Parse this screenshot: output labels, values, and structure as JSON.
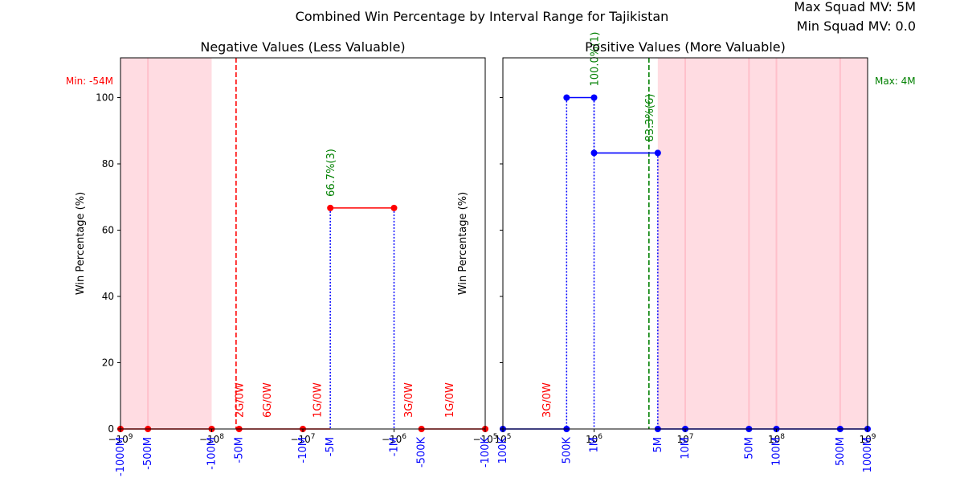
{
  "figure": {
    "suptitle": "Combined Win Percentage by Interval Range for Tajikistan",
    "max_squad_mv": "Max Squad MV: 5M",
    "min_squad_mv": "Min Squad MV: 0.0"
  },
  "colors": {
    "negative_line": "#ff0000",
    "positive_line": "#0000ff",
    "dotted_drop": "#0000ff",
    "shade": "#ffc0cb",
    "green_annot": "#008000",
    "red_annot": "#ff0000",
    "blue_tick": "#0000ff"
  },
  "chart_data": [
    {
      "type": "line",
      "title": "Negative Values (Less Valuable)",
      "xlabel": "",
      "ylabel": "Win Percentage (%)",
      "xscale": "symlog-negative",
      "xlim": [
        -1000000000,
        -100000
      ],
      "ylim": [
        0,
        112
      ],
      "grid": false,
      "yticks": [
        0,
        20,
        40,
        60,
        80,
        100
      ],
      "major_xticks": [
        {
          "value": -1000000000,
          "label": "−10^9"
        },
        {
          "value": -100000000,
          "label": "−10^8"
        },
        {
          "value": -10000000,
          "label": "−10^7"
        },
        {
          "value": -1000000,
          "label": "−10^6"
        },
        {
          "value": -100000,
          "label": "−10^5"
        }
      ],
      "interval_ticks": [
        {
          "value": -1000000000,
          "label": "-1000M"
        },
        {
          "value": -500000000,
          "label": "-500M"
        },
        {
          "value": -100000000,
          "label": "-100M"
        },
        {
          "value": -50000000,
          "label": "-50M"
        },
        {
          "value": -10000000,
          "label": "-10M"
        },
        {
          "value": -5000000,
          "label": "-5M"
        },
        {
          "value": -1000000,
          "label": "-1M"
        },
        {
          "value": -500000,
          "label": "-500K"
        },
        {
          "value": -100000,
          "label": "-100K"
        }
      ],
      "series": [
        {
          "x": [
            -1000000000,
            -500000000,
            -100000000,
            -50000000,
            -10000000,
            -5000000,
            -1000000,
            -500000,
            -100000
          ],
          "y": [
            0,
            0,
            0,
            0,
            0,
            66.7,
            66.7,
            0,
            0
          ]
        }
      ],
      "segments": [
        {
          "x0": -1000000000,
          "x1": -500000000,
          "y": 0
        },
        {
          "x0": -500000000,
          "x1": -100000000,
          "y": 0
        },
        {
          "x0": -50000000,
          "x1": -10000000,
          "y": 0
        },
        {
          "x0": -10000000,
          "x1": -5000000,
          "y": 0
        },
        {
          "x0": -5000000,
          "x1": -1000000,
          "y": 66.7
        },
        {
          "x0": -500000,
          "x1": -100000,
          "y": 0
        }
      ],
      "drop_lines": [
        -5000000,
        -1000000
      ],
      "shaded_range": [
        -1000000000,
        -100000000
      ],
      "vline": {
        "x": -54000000,
        "label": "Min: -54M"
      },
      "annotations": [
        {
          "x": -5000000,
          "y": 66.7,
          "text": "66.7%(3)",
          "color": "green"
        },
        {
          "x": -50000000,
          "y": 0,
          "text": "2G/0W",
          "color": "red"
        },
        {
          "x": -25000000,
          "y": 0,
          "text": "6G/0W",
          "color": "red"
        },
        {
          "x": -7000000,
          "y": 0,
          "text": "1G/0W",
          "color": "red"
        },
        {
          "x": -700000,
          "y": 0,
          "text": "3G/0W",
          "color": "red"
        },
        {
          "x": -250000,
          "y": 0,
          "text": "1G/0W",
          "color": "red"
        }
      ]
    },
    {
      "type": "line",
      "title": "Positive Values (More Valuable)",
      "xlabel": "",
      "ylabel": "Win Percentage (%)",
      "xscale": "log",
      "xlim": [
        100000,
        1000000000
      ],
      "ylim": [
        0,
        112
      ],
      "grid": false,
      "yticks": [
        0,
        20,
        40,
        60,
        80,
        100
      ],
      "major_xticks": [
        {
          "value": 100000,
          "label": "10^5"
        },
        {
          "value": 1000000,
          "label": "10^6"
        },
        {
          "value": 10000000,
          "label": "10^7"
        },
        {
          "value": 100000000,
          "label": "10^8"
        },
        {
          "value": 1000000000,
          "label": "10^9"
        }
      ],
      "interval_ticks": [
        {
          "value": 100000,
          "label": "100K"
        },
        {
          "value": 500000,
          "label": "500K"
        },
        {
          "value": 1000000,
          "label": "1M"
        },
        {
          "value": 5000000,
          "label": "5M"
        },
        {
          "value": 10000000,
          "label": "10M"
        },
        {
          "value": 50000000,
          "label": "50M"
        },
        {
          "value": 100000000,
          "label": "100M"
        },
        {
          "value": 500000000,
          "label": "500M"
        },
        {
          "value": 1000000000,
          "label": "1000M"
        }
      ],
      "series": [
        {
          "x": [
            100000,
            500000,
            1000000,
            5000000,
            10000000,
            50000000,
            100000000,
            500000000,
            1000000000
          ],
          "y": [
            0,
            100,
            100,
            83.3,
            0,
            0,
            0,
            0,
            0
          ]
        }
      ],
      "extra_points": [
        {
          "x": 1000000,
          "y": 83.3
        },
        {
          "x": 500000,
          "y": 0
        },
        {
          "x": 5000000,
          "y": 0
        }
      ],
      "segments": [
        {
          "x0": 100000,
          "x1": 500000,
          "y": 0
        },
        {
          "x0": 500000,
          "x1": 1000000,
          "y": 100
        },
        {
          "x0": 1000000,
          "x1": 5000000,
          "y": 83.3
        },
        {
          "x0": 5000000,
          "x1": 10000000,
          "y": 0
        },
        {
          "x0": 10000000,
          "x1": 50000000,
          "y": 0
        },
        {
          "x0": 50000000,
          "x1": 100000000,
          "y": 0
        },
        {
          "x0": 100000000,
          "x1": 500000000,
          "y": 0
        },
        {
          "x0": 500000000,
          "x1": 1000000000,
          "y": 0
        }
      ],
      "drop_lines": [
        500000,
        1000000,
        5000000
      ],
      "drop_partial": [
        {
          "x": 1000000,
          "y0": 83.3,
          "y1": 100
        }
      ],
      "shaded_range": [
        5000000,
        1000000000
      ],
      "vline": {
        "x": 4000000,
        "label": "Max: 4M"
      },
      "annotations": [
        {
          "x": 1000000,
          "y": 100,
          "text": "100.0%(1)",
          "color": "green"
        },
        {
          "x": 4000000,
          "y": 83.3,
          "text": "83.3%(6)",
          "color": "green"
        },
        {
          "x": 300000,
          "y": 0,
          "text": "3G/0W",
          "color": "red"
        }
      ]
    }
  ]
}
